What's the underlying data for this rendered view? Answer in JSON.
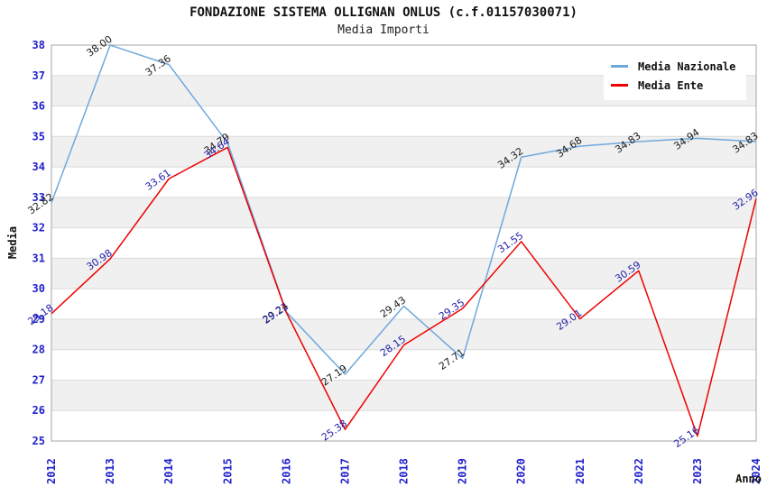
{
  "header": {
    "title": "FONDAZIONE SISTEMA OLLIGNAN ONLUS (c.f.01157030071)",
    "subtitle": "Media Importi"
  },
  "chart_data": {
    "type": "line",
    "title": "FONDAZIONE SISTEMA OLLIGNAN ONLUS (c.f.01157030071)",
    "subtitle": "Media Importi",
    "xlabel": "Anno",
    "ylabel": "Media",
    "x": [
      "2012",
      "2013",
      "2014",
      "2015",
      "2016",
      "2017",
      "2018",
      "2019",
      "2020",
      "2021",
      "2022",
      "2023",
      "2024"
    ],
    "ylim": [
      25,
      38
    ],
    "ytick_step": 1,
    "grid": "horizontal gridlines every 1 unit with alternating shaded bands",
    "legend_position": "top-right",
    "point_labels": "each point labeled with value, rotated -35deg",
    "series": [
      {
        "name": "Media Nazionale",
        "color": "#6FA8DC",
        "label_color": "#1a1a1a",
        "values": [
          32.82,
          38.0,
          37.36,
          34.79,
          29.24,
          27.19,
          29.43,
          27.71,
          34.32,
          34.68,
          34.83,
          34.94,
          34.83
        ]
      },
      {
        "name": "Media Ente",
        "color": "#EE0000",
        "label_color": "#2222AA",
        "values": [
          29.18,
          30.98,
          33.61,
          34.64,
          29.22,
          25.38,
          28.15,
          29.35,
          31.55,
          29.01,
          30.59,
          25.16,
          32.96
        ]
      }
    ],
    "colors": {
      "tick_label": "#2222CC",
      "gridline": "#DBDBDB",
      "band_fill": "#F0F0F0",
      "plot_border": "#A6A6A6",
      "background": "#FFFFFF"
    }
  }
}
